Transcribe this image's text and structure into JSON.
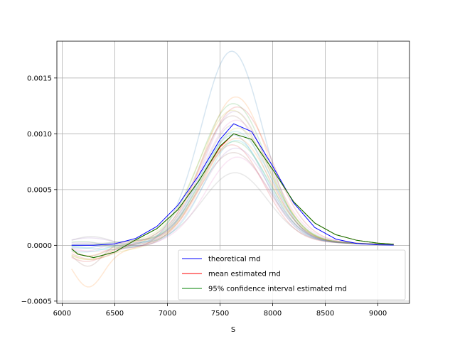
{
  "chart_data": {
    "type": "line",
    "title": "",
    "xlabel": "S",
    "ylabel": "",
    "xlim": [
      5950,
      9300
    ],
    "ylim": [
      -0.00052,
      0.00183
    ],
    "xticks": [
      6000,
      6500,
      7000,
      7500,
      8000,
      8500,
      9000
    ],
    "xtick_labels": [
      "6000",
      "6500",
      "7000",
      "7500",
      "8000",
      "8500",
      "9000"
    ],
    "yticks": [
      -0.0005,
      0.0,
      0.0005,
      0.001,
      0.0015
    ],
    "ytick_labels": [
      "−0.0005",
      "0.0000",
      "0.0005",
      "0.0010",
      "0.0015"
    ],
    "grid": true,
    "legend_position": "lower-right",
    "legend": [
      {
        "label": "theoretical rnd",
        "color": "#0000ff"
      },
      {
        "label": "mean estimated rnd",
        "color": "#ff0000"
      },
      {
        "label": "95% confidence interval estimated rnd",
        "color": "#008000"
      }
    ],
    "series": [
      {
        "name": "theoretical rnd",
        "color": "#0000ff",
        "x": [
          6090,
          6300,
          6500,
          6700,
          6900,
          7100,
          7300,
          7500,
          7630,
          7800,
          8000,
          8200,
          8400,
          8600,
          8800,
          9000,
          9150
        ],
        "y": [
          0.0,
          1e-06,
          1.4e-05,
          6.2e-05,
          0.00017,
          0.00036,
          0.00063,
          0.00095,
          0.00109,
          0.00102,
          0.00071,
          0.00038,
          0.00016,
          5.6e-05,
          1.7e-05,
          5e-06,
          2e-06
        ]
      },
      {
        "name": "mean estimated rnd",
        "color": "#ff0000",
        "x": [
          6090,
          6150,
          6300,
          6500,
          6700,
          6900,
          7100,
          7300,
          7500,
          7630,
          7800,
          8000,
          8200,
          8400,
          8600,
          8800,
          9000,
          9150
        ],
        "y": [
          -3e-05,
          -8e-05,
          -0.00011,
          -6e-05,
          5e-05,
          0.00015,
          0.00032,
          0.00058,
          0.00088,
          0.001,
          0.00095,
          0.00068,
          0.00039,
          0.0002,
          9.5e-05,
          4.5e-05,
          2e-05,
          1e-05
        ]
      },
      {
        "name": "95% confidence interval estimated rnd",
        "color": "#008000",
        "x": [
          6090,
          6150,
          6300,
          6500,
          6700,
          6900,
          7100,
          7300,
          7500,
          7630,
          7800,
          8000,
          8200,
          8400,
          8600,
          8800,
          9000,
          9150
        ],
        "y": [
          -3e-05,
          -8e-05,
          -0.00011,
          -6e-05,
          5e-05,
          0.00015,
          0.00032,
          0.00058,
          0.00089,
          0.001,
          0.00095,
          0.00068,
          0.00039,
          0.0002,
          9.5e-05,
          4.5e-05,
          2e-05,
          1e-05
        ]
      }
    ],
    "sample_curves": {
      "colors": [
        "#1f77b4",
        "#ff7f0e",
        "#2ca02c",
        "#d62728",
        "#9467bd",
        "#8c564b",
        "#e377c2",
        "#7f7f7f",
        "#bcbd22",
        "#17becf"
      ],
      "peak_values": [
        0.00172,
        0.00131,
        0.00125,
        0.00122,
        0.00118,
        0.00114,
        0.0011,
        0.00106,
        0.00103,
        0.001,
        0.00097,
        0.00094,
        0.00091,
        0.00088,
        0.00085,
        0.00081,
        0.00077,
        0.00063,
        0.00119,
        0.00092
      ],
      "left_values": [
        -4e-05,
        -0.00039,
        3e-05,
        -0.00011,
        4e-05,
        -0.00018,
        -6e-05,
        6e-05,
        -0.00014,
        -2e-05,
        2e-05,
        -8e-05,
        0.0,
        -0.00016,
        5e-05,
        -0.0001,
        -4e-05,
        3e-05,
        -0.00012,
        -7e-05
      ]
    }
  }
}
